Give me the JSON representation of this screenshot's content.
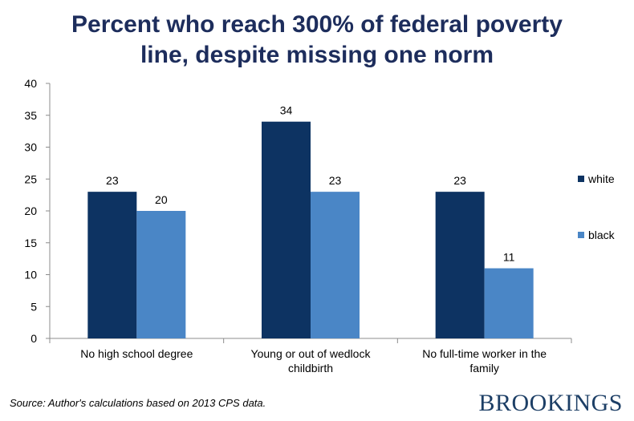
{
  "chart_data": {
    "type": "bar",
    "title_lines": [
      "Percent who reach 300% of federal poverty",
      "line, despite missing one norm"
    ],
    "categories": [
      [
        "No high school degree"
      ],
      [
        "Young or out of wedlock",
        "childbirth"
      ],
      [
        "No full-time worker in the",
        "family"
      ]
    ],
    "series": [
      {
        "name": "white",
        "values": [
          23,
          34,
          23
        ],
        "labels": [
          "23",
          "34",
          "23"
        ],
        "color": "#0d3362"
      },
      {
        "name": "black",
        "values": [
          20,
          23,
          11
        ],
        "labels": [
          "20",
          "23",
          "11"
        ],
        "color": "#4a86c6"
      }
    ],
    "ylim": [
      0,
      40
    ],
    "yticks": [
      "0",
      "5",
      "10",
      "15",
      "20",
      "25",
      "30",
      "35",
      "40"
    ],
    "xlabel": "",
    "ylabel": "",
    "grid": false,
    "legend_position": "right"
  },
  "footer": {
    "source": "Source: Author's calculations based on 2013 CPS data.",
    "brand": "BROOKINGS"
  },
  "colors": {
    "title": "#1d2d5c",
    "brand": "#1d3f66",
    "axis": "#8c8c8c",
    "text": "#000000"
  }
}
